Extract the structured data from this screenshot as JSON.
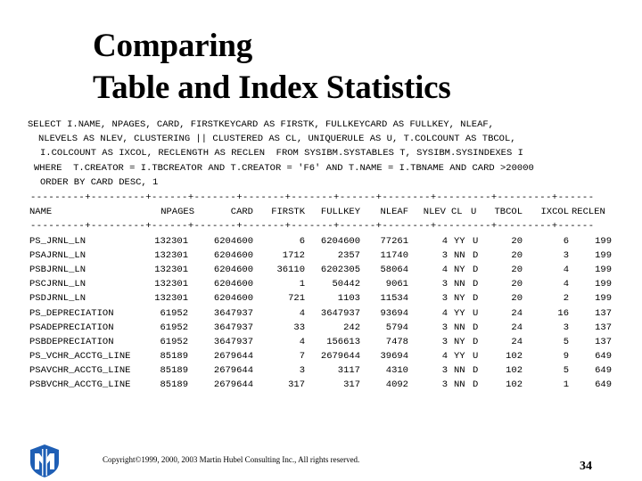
{
  "slide": {
    "title_line1": "Comparing",
    "title_line2": "Table and Index Statistics",
    "page_number": "34",
    "copyright": "Copyright©1999, 2000, 2003  Martin Hubel Consulting Inc.,   All rights reserved."
  },
  "sql_lines": [
    "SELECT I.NAME, NPAGES, CARD, FIRSTKEYCARD AS FIRSTK, FULLKEYCARD AS FULLKEY, NLEAF,",
    "NLEVELS AS NLEV, CLUSTERING || CLUSTERED AS CL, UNIQUERULE AS U, T.COLCOUNT AS TBCOL,",
    "I.COLCOUNT AS IXCOL, RECLENGTH AS RECLEN  FROM SYSIBM.SYSTABLES T, SYSIBM.SYSINDEXES I",
    "WHERE  T.CREATOR = I.TBCREATOR AND T.CREATOR = 'F6' AND T.NAME = I.TBNAME AND CARD >20000",
    "ORDER BY CARD DESC, 1"
  ],
  "rule_line": "---------+---------+------+-------+-------+-------+------+--------+---------+---------+------",
  "columns": [
    "NAME",
    "NPAGES",
    "CARD",
    "FIRSTK",
    "FULLKEY",
    "NLEAF",
    "NLEV",
    "CL",
    "U",
    "TBCOL",
    "IXCOL",
    "RECLEN"
  ],
  "rows": [
    [
      "PS_JRNL_LN",
      "132301",
      "6204600",
      "6",
      "6204600",
      "77261",
      "4",
      "YY",
      "U",
      "20",
      "6",
      "199"
    ],
    [
      "PSAJRNL_LN",
      "132301",
      "6204600",
      "1712",
      "2357",
      "11740",
      "3",
      "NN",
      "D",
      "20",
      "3",
      "199"
    ],
    [
      "PSBJRNL_LN",
      "132301",
      "6204600",
      "36110",
      "6202305",
      "58064",
      "4",
      "NY",
      "D",
      "20",
      "4",
      "199"
    ],
    [
      "PSCJRNL_LN",
      "132301",
      "6204600",
      "1",
      "50442",
      "9061",
      "3",
      "NN",
      "D",
      "20",
      "4",
      "199"
    ],
    [
      "PSDJRNL_LN",
      "132301",
      "6204600",
      "721",
      "1103",
      "11534",
      "3",
      "NY",
      "D",
      "20",
      "2",
      "199"
    ],
    [
      "PS_DEPRECIATION",
      "61952",
      "3647937",
      "4",
      "3647937",
      "93694",
      "4",
      "YY",
      "U",
      "24",
      "16",
      "137"
    ],
    [
      "PSADEPRECIATION",
      "61952",
      "3647937",
      "33",
      "242",
      "5794",
      "3",
      "NN",
      "D",
      "24",
      "3",
      "137"
    ],
    [
      "PSBDEPRECIATION",
      "61952",
      "3647937",
      "4",
      "156613",
      "7478",
      "3",
      "NY",
      "D",
      "24",
      "5",
      "137"
    ],
    [
      "PS_VCHR_ACCTG_LINE",
      "85189",
      "2679644",
      "7",
      "2679644",
      "39694",
      "4",
      "YY",
      "U",
      "102",
      "9",
      "649"
    ],
    [
      "PSAVCHR_ACCTG_LINE",
      "85189",
      "2679644",
      "3",
      "3117",
      "4310",
      "3",
      "NN",
      "D",
      "102",
      "5",
      "649"
    ],
    [
      "PSBVCHR_ACCTG_LINE",
      "85189",
      "2679644",
      "317",
      "317",
      "4092",
      "3",
      "NN",
      "D",
      "102",
      "1",
      "649"
    ]
  ]
}
